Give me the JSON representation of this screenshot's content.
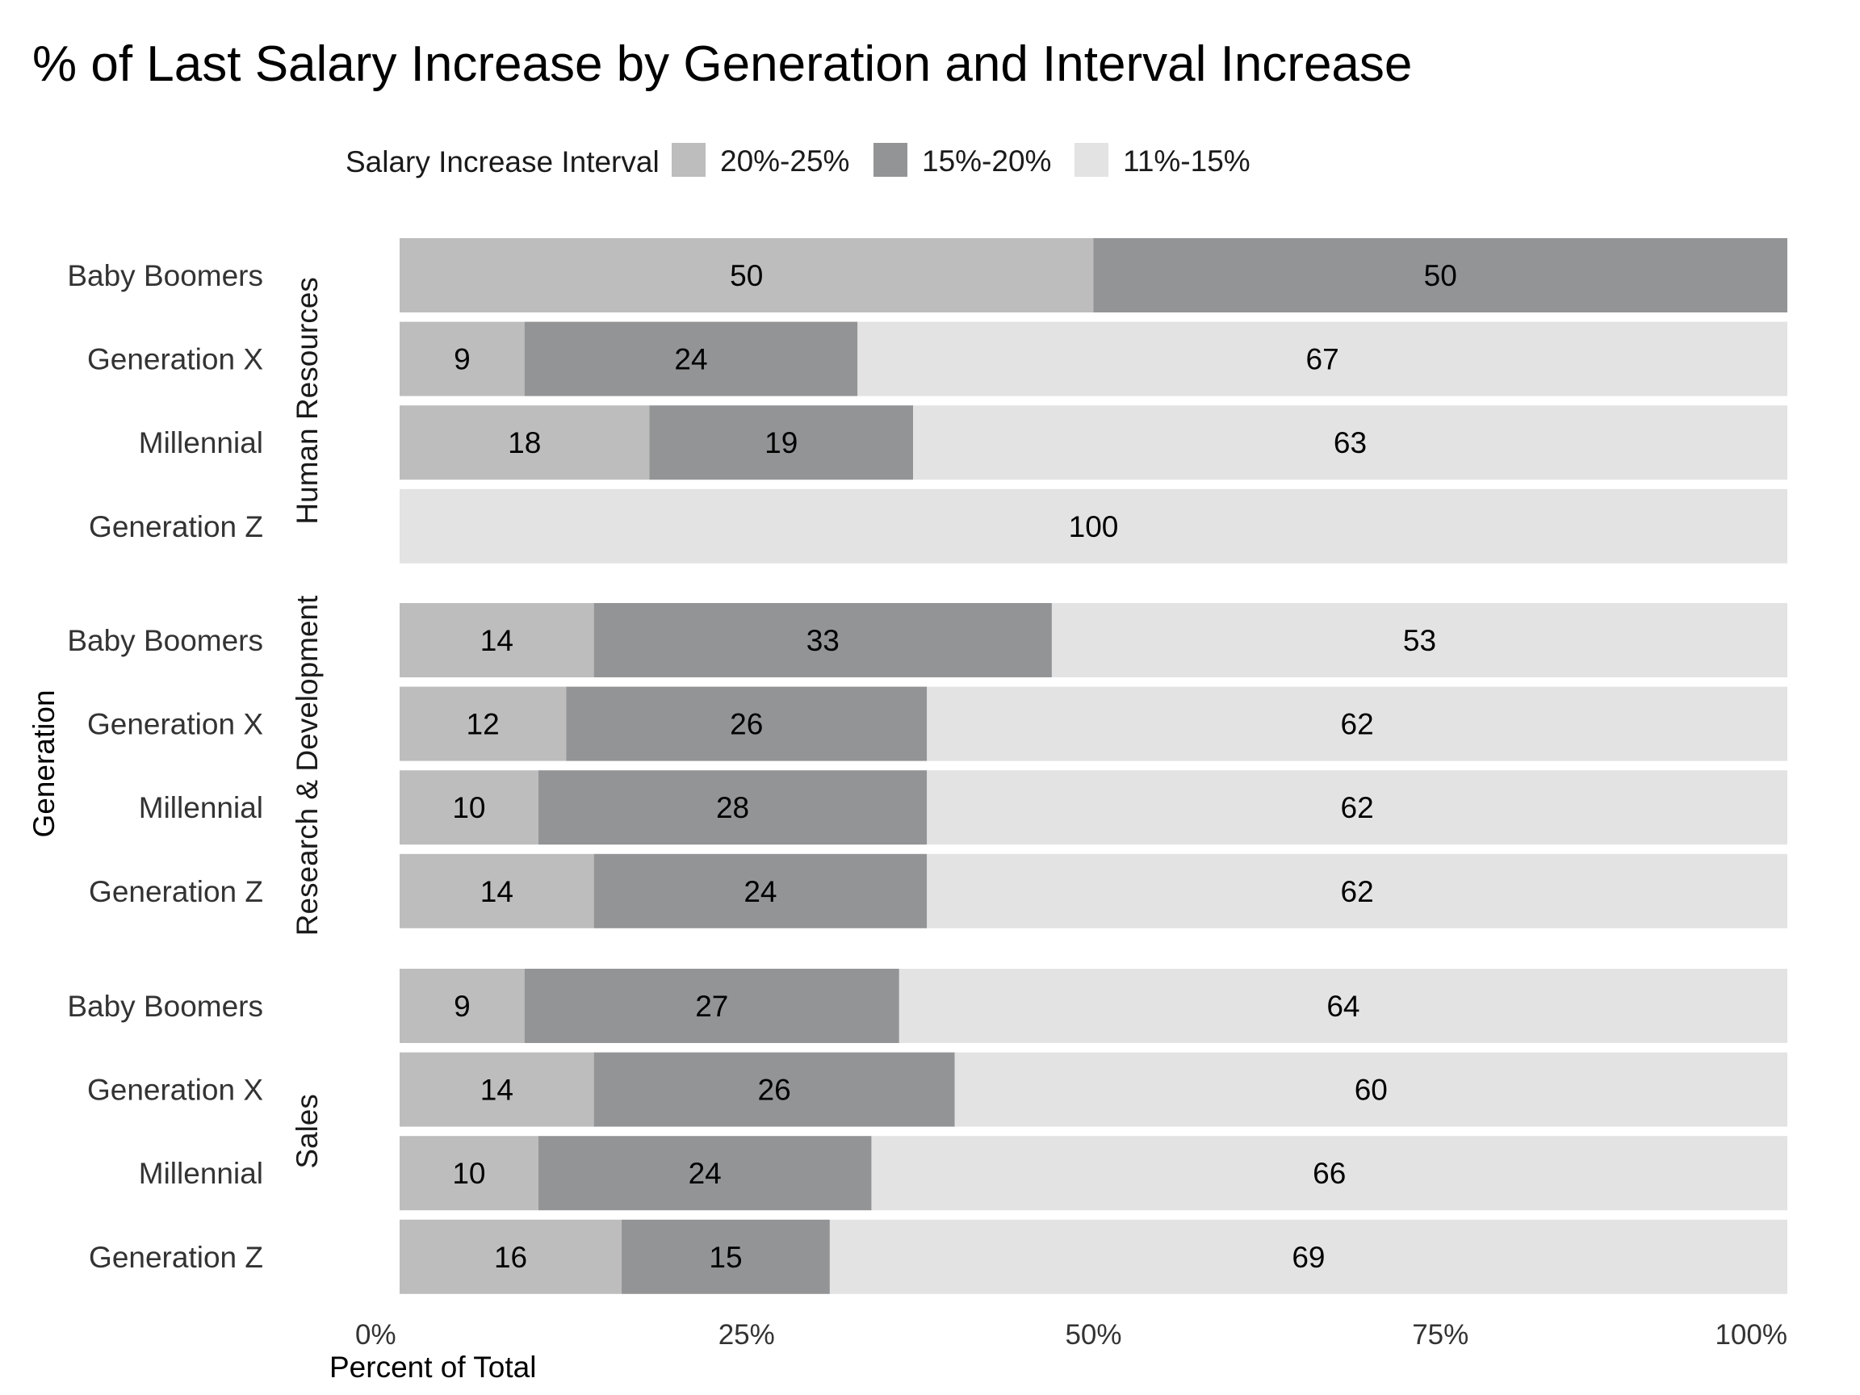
{
  "chart_data": {
    "type": "bar",
    "orientation": "horizontal",
    "stacked": "percent",
    "title": "% of Last Salary Increase by Generation and Interval Increase",
    "xlabel": "Percent of Total",
    "ylabel": "Generation",
    "xlim": [
      0,
      100
    ],
    "x_ticks": [
      "0%",
      "25%",
      "50%",
      "75%",
      "100%"
    ],
    "grid": false,
    "legend": {
      "title": "Salary Increase Interval",
      "position": "top"
    },
    "series": [
      {
        "name": "20%-25%",
        "color": "#bdbdbd"
      },
      {
        "name": "15%-20%",
        "color": "#939496"
      },
      {
        "name": "11%-15%",
        "color": "#e3e3e3"
      }
    ],
    "facets": [
      {
        "name": "Human Resources",
        "rows": [
          {
            "category": "Baby Boomers",
            "values": [
              50,
              50,
              0
            ]
          },
          {
            "category": "Generation X",
            "values": [
              9,
              24,
              67
            ]
          },
          {
            "category": "Millennial",
            "values": [
              18,
              19,
              63
            ]
          },
          {
            "category": "Generation Z",
            "values": [
              0,
              0,
              100
            ]
          }
        ]
      },
      {
        "name": "Research & Development",
        "rows": [
          {
            "category": "Baby Boomers",
            "values": [
              14,
              33,
              53
            ]
          },
          {
            "category": "Generation X",
            "values": [
              12,
              26,
              62
            ]
          },
          {
            "category": "Millennial",
            "values": [
              10,
              28,
              62
            ]
          },
          {
            "category": "Generation Z",
            "values": [
              14,
              24,
              62
            ]
          }
        ]
      },
      {
        "name": "Sales",
        "rows": [
          {
            "category": "Baby Boomers",
            "values": [
              9,
              27,
              64
            ]
          },
          {
            "category": "Generation X",
            "values": [
              14,
              26,
              60
            ]
          },
          {
            "category": "Millennial",
            "values": [
              10,
              24,
              66
            ]
          },
          {
            "category": "Generation Z",
            "values": [
              16,
              15,
              69
            ]
          }
        ]
      }
    ]
  }
}
